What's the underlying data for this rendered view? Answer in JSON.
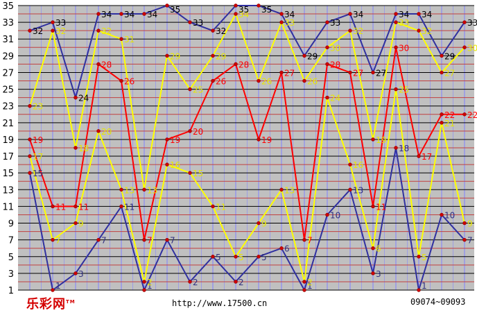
{
  "footer": {
    "brand": "乐彩网",
    "brand_mark": "TM",
    "url": "http://www.17500.cn",
    "issue_range": "09074~09093"
  },
  "chart_data": {
    "type": "line",
    "ylim": [
      1,
      35
    ],
    "y_ticks": [
      1,
      3,
      5,
      7,
      9,
      11,
      13,
      15,
      17,
      19,
      21,
      23,
      25,
      27,
      29,
      31,
      33,
      35
    ],
    "grid": true,
    "x_count": 20,
    "colors": {
      "background": "#c0c0c0",
      "grid_dark": "#000000",
      "grid_red": "#c04040",
      "grid_vertical": "#8080ff",
      "tick_label": "#000000"
    },
    "series": [
      {
        "color": "#3030a0",
        "label_color": "#303080",
        "values": [
          15,
          1,
          3,
          7,
          11,
          1,
          7,
          2,
          5,
          2,
          5,
          6,
          1,
          10,
          13,
          3,
          18,
          1,
          10,
          7
        ]
      },
      {
        "color": "#ffff00",
        "label_color": "#e8e800",
        "values": [
          17,
          7,
          9,
          20,
          13,
          2,
          16,
          15,
          11,
          5,
          9,
          13,
          2,
          24,
          16,
          6,
          25,
          5,
          21,
          9
        ]
      },
      {
        "color": "#ff0000",
        "label_color": "#ff0000",
        "values": [
          19,
          11,
          11,
          28,
          26,
          7,
          19,
          20,
          26,
          28,
          19,
          27,
          7,
          28,
          27,
          11,
          30,
          17,
          22,
          22
        ]
      },
      {
        "color": "#ffff00",
        "label_color": "#e8e800",
        "values": [
          23,
          32,
          18,
          32,
          31,
          13,
          29,
          25,
          29,
          34,
          26,
          33,
          26,
          30,
          32,
          19,
          33,
          32,
          27,
          30
        ]
      },
      {
        "color": "#3030a0",
        "label_color": "#000000",
        "values": [
          32,
          33,
          24,
          34,
          34,
          34,
          35,
          33,
          32,
          35,
          35,
          34,
          29,
          33,
          34,
          27,
          34,
          34,
          29,
          33
        ]
      }
    ]
  }
}
